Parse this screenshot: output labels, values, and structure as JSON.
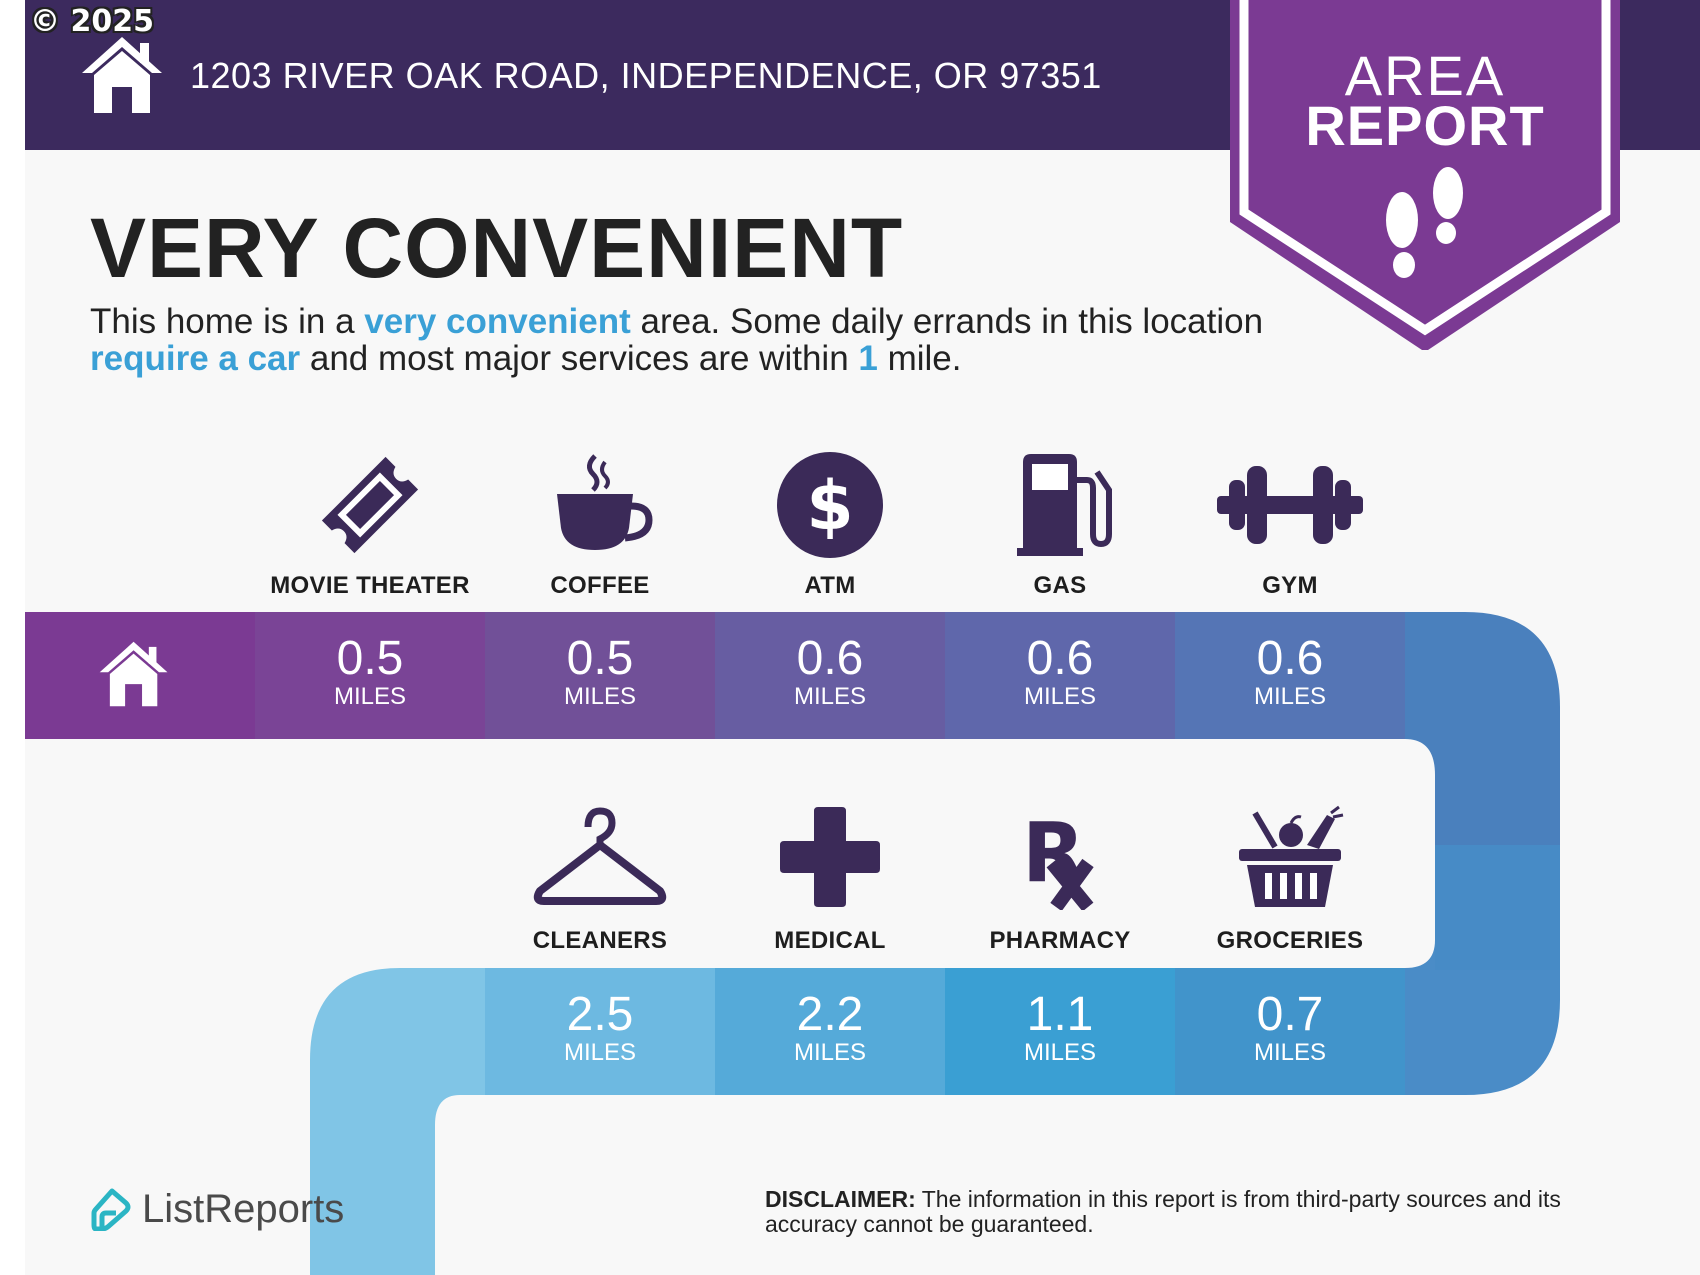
{
  "copyright": "© 2025",
  "header": {
    "address": "1203 RIVER OAK ROAD, INDEPENDENCE, OR 97351",
    "home_icon": "house-icon",
    "background": "#3c2a5e"
  },
  "banner": {
    "line1": "AREA",
    "line2": "REPORT",
    "icon": "footprints-icon",
    "color": "#7b3a93"
  },
  "rating": {
    "title": "VERY CONVENIENT",
    "desc_part1": "This home is in a ",
    "desc_hl1": "very convenient",
    "desc_part2": " area. Some daily errands in this location ",
    "desc_hl2": "require a car",
    "desc_part3": " and most major services are within ",
    "desc_hl3": "1",
    "desc_part4": " mile.",
    "highlight_color": "#3aa0d6"
  },
  "amenities_top": [
    {
      "label": "MOVIE THEATER",
      "distance": "0.5",
      "unit": "MILES",
      "icon": "ticket-icon"
    },
    {
      "label": "COFFEE",
      "distance": "0.5",
      "unit": "MILES",
      "icon": "coffee-cup-icon"
    },
    {
      "label": "ATM",
      "distance": "0.6",
      "unit": "MILES",
      "icon": "dollar-coin-icon"
    },
    {
      "label": "GAS",
      "distance": "0.6",
      "unit": "MILES",
      "icon": "gas-pump-icon"
    },
    {
      "label": "GYM",
      "distance": "0.6",
      "unit": "MILES",
      "icon": "dumbbell-icon"
    }
  ],
  "amenities_bottom": [
    {
      "label": "CLEANERS",
      "distance": "2.5",
      "unit": "MILES",
      "icon": "hanger-icon"
    },
    {
      "label": "MEDICAL",
      "distance": "2.2",
      "unit": "MILES",
      "icon": "medical-cross-icon"
    },
    {
      "label": "PHARMACY",
      "distance": "1.1",
      "unit": "MILES",
      "icon": "rx-icon"
    },
    {
      "label": "GROCERIES",
      "distance": "0.7",
      "unit": "MILES",
      "icon": "grocery-basket-icon"
    }
  ],
  "footer": {
    "logo_text": "ListReports",
    "logo_icon": "listreports-logo-icon",
    "disclaimer_label": "DISCLAIMER:",
    "disclaimer_text": " The information in this report is from third-party sources and its accuracy cannot be guaranteed."
  },
  "colors": {
    "icon_dark": "#3b2a58",
    "top_row": [
      "#7b3a93",
      "#7a4496",
      "#715098",
      "#675da2",
      "#5b6db0",
      "#5178b8",
      "#4a80bd"
    ],
    "bottom_row": [
      "#80c5e6",
      "#6db9e1",
      "#55aad9",
      "#3f9fd4",
      "#4194cb",
      "#4a8cc7"
    ]
  }
}
